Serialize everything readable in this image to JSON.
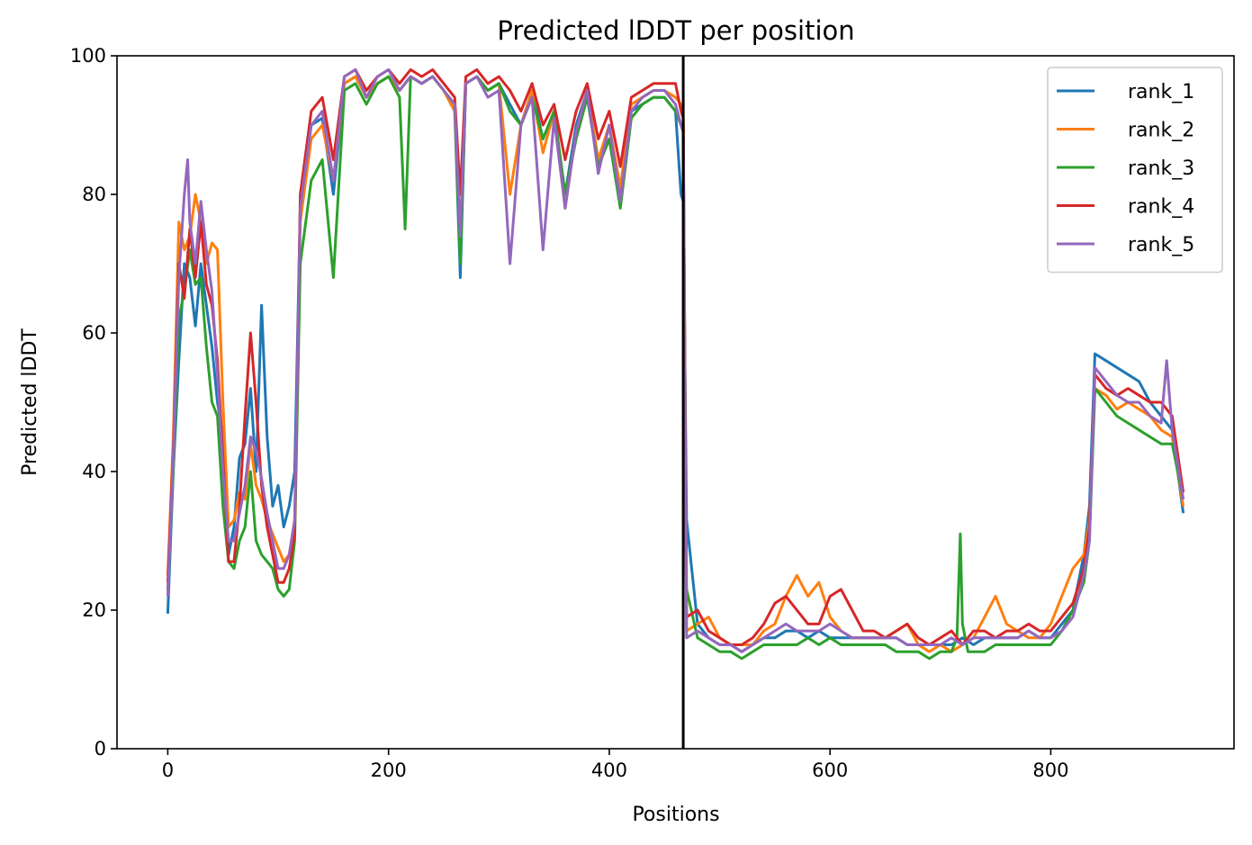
{
  "chart_data": {
    "type": "line",
    "title": "Predicted lDDT per position",
    "xlabel": "Positions",
    "ylabel": "Predicted lDDT",
    "xlim": [
      -46,
      966
    ],
    "ylim": [
      0,
      100
    ],
    "xticks": [
      0,
      200,
      400,
      600,
      800
    ],
    "yticks": [
      0,
      20,
      40,
      60,
      80,
      100
    ],
    "grid": false,
    "legend_position": "top-right",
    "vertical_line_x": 467,
    "series": [
      {
        "name": "rank_1",
        "color": "#1f77b4",
        "x": [
          0,
          5,
          10,
          15,
          20,
          25,
          30,
          35,
          40,
          45,
          50,
          55,
          60,
          65,
          70,
          75,
          80,
          85,
          90,
          95,
          100,
          105,
          110,
          115,
          120,
          130,
          140,
          150,
          160,
          170,
          180,
          190,
          200,
          210,
          220,
          230,
          240,
          250,
          260,
          265,
          270,
          280,
          290,
          300,
          310,
          320,
          330,
          340,
          350,
          360,
          370,
          380,
          390,
          400,
          410,
          420,
          430,
          440,
          450,
          460,
          465,
          467,
          470,
          480,
          490,
          500,
          510,
          520,
          530,
          540,
          550,
          560,
          570,
          580,
          590,
          600,
          610,
          620,
          630,
          640,
          650,
          660,
          670,
          680,
          690,
          700,
          710,
          720,
          730,
          740,
          750,
          760,
          770,
          780,
          790,
          800,
          810,
          820,
          830,
          835,
          840,
          850,
          860,
          870,
          880,
          890,
          900,
          910,
          920
        ],
        "values": [
          19.5,
          40,
          56,
          70,
          68,
          61,
          70,
          64,
          58,
          50,
          45,
          28,
          32,
          42,
          44,
          52,
          40,
          64,
          45,
          35,
          38,
          32,
          35,
          40,
          78,
          90,
          91,
          80,
          96,
          97,
          94,
          96,
          97,
          95,
          97,
          96,
          97,
          95,
          92,
          68,
          96,
          97,
          95,
          96,
          93,
          90,
          95,
          88,
          92,
          80,
          90,
          95,
          84,
          88,
          80,
          92,
          93,
          94,
          94,
          92,
          80,
          79,
          33,
          18,
          16,
          15,
          15,
          14,
          15,
          16,
          16,
          17,
          17,
          16,
          17,
          16,
          16,
          16,
          16,
          16,
          16,
          16,
          15,
          15,
          15,
          15,
          15,
          16,
          15,
          16,
          16,
          16,
          16,
          17,
          16,
          16,
          18,
          20,
          28,
          35,
          57,
          56,
          55,
          54,
          53,
          50,
          48,
          46,
          34
        ]
      },
      {
        "name": "rank_2",
        "color": "#ff7f0e",
        "x": [
          0,
          5,
          10,
          15,
          20,
          25,
          30,
          35,
          40,
          45,
          50,
          55,
          60,
          65,
          70,
          75,
          80,
          85,
          90,
          95,
          100,
          105,
          110,
          115,
          120,
          130,
          140,
          150,
          160,
          170,
          180,
          190,
          200,
          210,
          220,
          230,
          240,
          250,
          260,
          265,
          270,
          280,
          290,
          300,
          310,
          320,
          330,
          340,
          350,
          360,
          370,
          380,
          390,
          400,
          410,
          420,
          430,
          440,
          450,
          460,
          465,
          467,
          470,
          480,
          490,
          500,
          510,
          520,
          530,
          540,
          550,
          560,
          570,
          580,
          590,
          600,
          610,
          620,
          630,
          640,
          650,
          660,
          670,
          680,
          690,
          700,
          710,
          720,
          730,
          740,
          750,
          760,
          770,
          780,
          790,
          800,
          810,
          820,
          830,
          835,
          840,
          850,
          860,
          870,
          880,
          890,
          900,
          910,
          920
        ],
        "values": [
          25,
          45,
          76,
          72,
          74,
          80,
          76,
          70,
          73,
          72,
          50,
          32,
          33,
          37,
          36,
          44,
          38,
          36,
          33,
          31,
          29,
          27,
          28,
          33,
          76,
          88,
          90,
          82,
          96,
          97,
          94,
          96,
          97,
          95,
          97,
          96,
          97,
          95,
          92,
          72,
          96,
          97,
          95,
          96,
          80,
          90,
          95,
          86,
          92,
          78,
          89,
          95,
          85,
          90,
          81,
          93,
          94,
          95,
          95,
          94,
          93,
          92,
          17,
          18,
          19,
          16,
          15,
          15,
          15,
          17,
          18,
          22,
          25,
          22,
          24,
          19,
          17,
          16,
          16,
          16,
          16,
          17,
          18,
          15,
          14,
          15,
          14,
          15,
          16,
          19,
          22,
          18,
          17,
          16,
          16,
          18,
          22,
          26,
          28,
          33,
          52,
          51,
          49,
          50,
          49,
          48,
          46,
          45,
          35
        ]
      },
      {
        "name": "rank_3",
        "color": "#2ca02c",
        "x": [
          0,
          5,
          10,
          15,
          20,
          25,
          30,
          35,
          40,
          45,
          50,
          55,
          60,
          65,
          70,
          75,
          80,
          85,
          90,
          95,
          100,
          105,
          110,
          115,
          120,
          130,
          140,
          150,
          160,
          170,
          180,
          190,
          200,
          210,
          215,
          220,
          230,
          240,
          250,
          260,
          265,
          270,
          280,
          290,
          300,
          310,
          320,
          330,
          340,
          350,
          360,
          370,
          380,
          390,
          400,
          410,
          420,
          430,
          440,
          450,
          460,
          465,
          467,
          470,
          480,
          490,
          500,
          510,
          520,
          530,
          540,
          550,
          560,
          570,
          580,
          590,
          600,
          610,
          620,
          630,
          640,
          650,
          660,
          670,
          680,
          690,
          700,
          710,
          715,
          718,
          720,
          725,
          730,
          740,
          750,
          760,
          770,
          780,
          790,
          800,
          810,
          820,
          830,
          835,
          840,
          850,
          860,
          870,
          880,
          890,
          900,
          910,
          920
        ],
        "values": [
          23,
          40,
          62,
          66,
          72,
          67,
          68,
          58,
          50,
          48,
          35,
          27,
          26,
          30,
          32,
          40,
          30,
          28,
          27,
          26,
          23,
          22,
          23,
          30,
          70,
          82,
          85,
          68,
          95,
          96,
          93,
          96,
          97,
          94,
          75,
          97,
          96,
          97,
          95,
          93,
          70,
          96,
          97,
          95,
          96,
          92,
          90,
          94,
          88,
          92,
          80,
          88,
          94,
          84,
          88,
          78,
          91,
          93,
          94,
          94,
          92,
          90,
          89,
          23,
          16,
          15,
          14,
          14,
          13,
          14,
          15,
          15,
          15,
          15,
          16,
          15,
          16,
          15,
          15,
          15,
          15,
          15,
          14,
          14,
          14,
          13,
          14,
          14,
          16,
          31,
          18,
          14,
          14,
          14,
          15,
          15,
          15,
          15,
          15,
          15,
          17,
          20,
          24,
          30,
          52,
          50,
          48,
          47,
          46,
          45,
          44,
          44,
          36
        ]
      },
      {
        "name": "rank_4",
        "color": "#d62728",
        "x": [
          0,
          5,
          10,
          15,
          20,
          25,
          30,
          35,
          40,
          45,
          50,
          55,
          60,
          65,
          70,
          75,
          80,
          85,
          90,
          95,
          100,
          105,
          110,
          115,
          120,
          130,
          140,
          150,
          160,
          170,
          180,
          190,
          200,
          210,
          220,
          230,
          240,
          250,
          260,
          265,
          270,
          280,
          290,
          300,
          310,
          320,
          330,
          340,
          350,
          360,
          370,
          380,
          390,
          400,
          410,
          420,
          430,
          440,
          450,
          460,
          465,
          467,
          470,
          480,
          490,
          500,
          510,
          520,
          530,
          540,
          550,
          560,
          570,
          580,
          590,
          600,
          610,
          620,
          630,
          640,
          650,
          660,
          670,
          680,
          690,
          700,
          710,
          720,
          730,
          740,
          750,
          760,
          770,
          780,
          790,
          800,
          810,
          820,
          830,
          835,
          840,
          850,
          860,
          870,
          880,
          890,
          900,
          910,
          920
        ],
        "values": [
          24,
          43,
          70,
          65,
          75,
          68,
          76,
          67,
          64,
          56,
          42,
          27,
          27,
          35,
          48,
          60,
          50,
          38,
          32,
          28,
          24,
          24,
          26,
          31,
          80,
          92,
          94,
          85,
          97,
          98,
          95,
          97,
          98,
          96,
          98,
          97,
          98,
          96,
          94,
          80,
          97,
          98,
          96,
          97,
          95,
          92,
          96,
          90,
          93,
          85,
          92,
          96,
          88,
          92,
          84,
          94,
          95,
          96,
          96,
          96,
          92,
          91,
          19,
          20,
          17,
          16,
          15,
          15,
          16,
          18,
          21,
          22,
          20,
          18,
          18,
          22,
          23,
          20,
          17,
          17,
          16,
          17,
          18,
          16,
          15,
          16,
          17,
          15,
          17,
          17,
          16,
          17,
          17,
          18,
          17,
          17,
          19,
          21,
          26,
          32,
          54,
          52,
          51,
          52,
          51,
          50,
          50,
          48,
          37
        ]
      },
      {
        "name": "rank_5",
        "color": "#9467bd",
        "x": [
          0,
          5,
          10,
          15,
          18,
          20,
          25,
          30,
          35,
          40,
          45,
          50,
          55,
          60,
          65,
          70,
          75,
          80,
          85,
          90,
          95,
          100,
          105,
          110,
          115,
          120,
          130,
          140,
          150,
          160,
          170,
          180,
          190,
          200,
          210,
          220,
          230,
          240,
          250,
          260,
          265,
          270,
          280,
          290,
          300,
          310,
          320,
          330,
          340,
          350,
          360,
          370,
          380,
          390,
          400,
          410,
          420,
          430,
          440,
          450,
          460,
          465,
          467,
          470,
          480,
          490,
          500,
          510,
          520,
          530,
          540,
          550,
          560,
          570,
          580,
          590,
          600,
          610,
          620,
          630,
          640,
          650,
          660,
          670,
          680,
          690,
          700,
          710,
          720,
          730,
          740,
          750,
          760,
          770,
          780,
          790,
          800,
          810,
          820,
          830,
          835,
          840,
          850,
          860,
          870,
          880,
          890,
          900,
          905,
          910,
          920
        ],
        "values": [
          22,
          42,
          68,
          80,
          85,
          76,
          70,
          79,
          72,
          66,
          54,
          40,
          30,
          30,
          34,
          38,
          45,
          43,
          39,
          34,
          30,
          26,
          26,
          28,
          33,
          78,
          90,
          92,
          82,
          97,
          98,
          94,
          97,
          98,
          95,
          97,
          96,
          97,
          95,
          93,
          74,
          96,
          97,
          94,
          95,
          70,
          90,
          94,
          72,
          91,
          78,
          89,
          95,
          83,
          90,
          79,
          92,
          94,
          95,
          95,
          93,
          90,
          89,
          16,
          17,
          16,
          15,
          15,
          14,
          15,
          16,
          17,
          18,
          17,
          17,
          17,
          18,
          17,
          16,
          16,
          16,
          16,
          16,
          15,
          15,
          15,
          15,
          16,
          15,
          16,
          16,
          16,
          16,
          16,
          17,
          16,
          16,
          17,
          19,
          25,
          30,
          55,
          53,
          51,
          50,
          50,
          48,
          47,
          56,
          46,
          36
        ]
      }
    ]
  }
}
